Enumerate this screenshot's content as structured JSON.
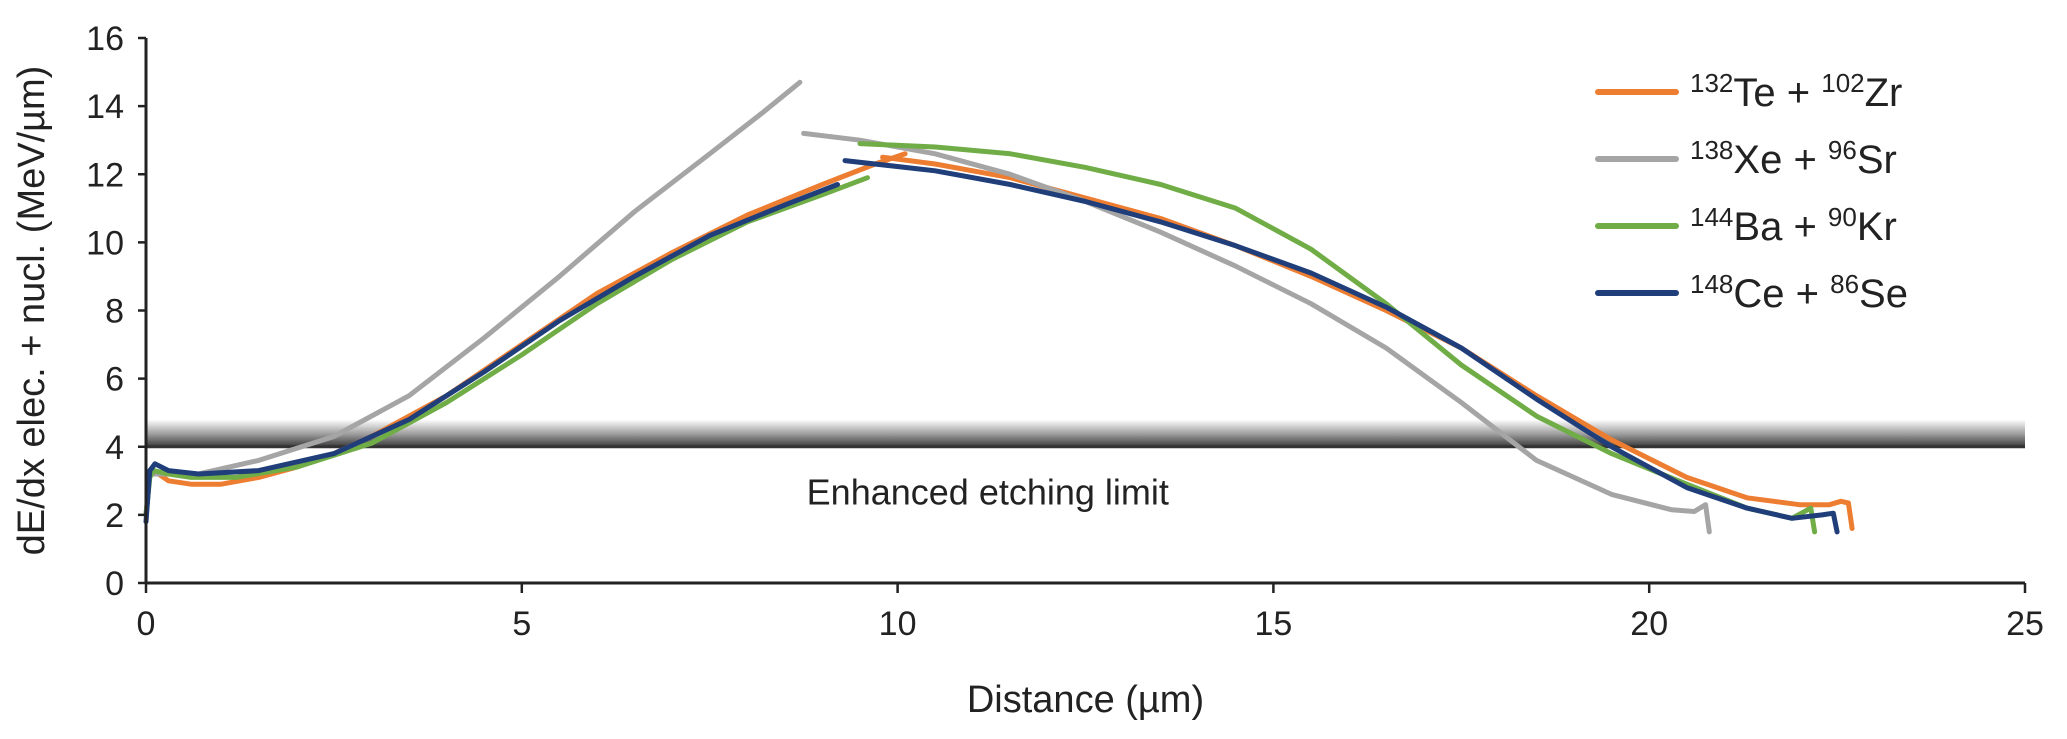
{
  "chart_data": {
    "type": "line",
    "xlabel": "Distance (µm)",
    "ylabel": "dE/dx elec. + nucl. (MeV/µm)",
    "xlim": [
      0,
      25
    ],
    "ylim": [
      0,
      16
    ],
    "xticks": [
      0,
      5,
      10,
      15,
      20,
      25
    ],
    "yticks": [
      0,
      2,
      4,
      6,
      8,
      10,
      12,
      14,
      16
    ],
    "grid": false,
    "legend_position": "top-right",
    "band": {
      "label": "Enhanced etching limit",
      "y_low": 4.0,
      "y_high": 4.8,
      "x_range": [
        0,
        25
      ]
    },
    "series": [
      {
        "name": "132Te + 102Zr",
        "legend": {
          "m1": "132",
          "e1": "Te",
          "sep": " + ",
          "m2": "102",
          "e2": "Zr"
        },
        "color": "#ED7D31",
        "segments": [
          [
            [
              0.0,
              2.0
            ],
            [
              0.05,
              3.2
            ],
            [
              0.1,
              3.3
            ],
            [
              0.3,
              3.0
            ],
            [
              0.6,
              2.9
            ],
            [
              1.0,
              2.9
            ],
            [
              1.5,
              3.1
            ],
            [
              2.0,
              3.4
            ],
            [
              2.5,
              3.8
            ],
            [
              3.0,
              4.3
            ],
            [
              4.0,
              5.5
            ],
            [
              5.0,
              7.0
            ],
            [
              6.0,
              8.5
            ],
            [
              7.0,
              9.7
            ],
            [
              8.0,
              10.8
            ],
            [
              9.0,
              11.7
            ],
            [
              9.7,
              12.3
            ],
            [
              10.1,
              12.6
            ]
          ],
          [
            [
              9.8,
              12.5
            ],
            [
              10.5,
              12.3
            ],
            [
              11.5,
              11.9
            ],
            [
              12.5,
              11.3
            ],
            [
              13.5,
              10.7
            ],
            [
              14.5,
              9.9
            ],
            [
              15.5,
              9.0
            ],
            [
              16.5,
              8.0
            ],
            [
              17.5,
              6.9
            ],
            [
              18.5,
              5.5
            ],
            [
              19.5,
              4.2
            ],
            [
              20.5,
              3.1
            ],
            [
              21.3,
              2.5
            ],
            [
              22.0,
              2.3
            ],
            [
              22.4,
              2.3
            ],
            [
              22.55,
              2.4
            ],
            [
              22.65,
              2.35
            ],
            [
              22.7,
              1.6
            ]
          ]
        ]
      },
      {
        "name": "138Xe + 96Sr",
        "legend": {
          "m1": "138",
          "e1": "Xe",
          "sep": " + ",
          "m2": "96",
          "e2": "Sr"
        },
        "color": "#A5A5A5",
        "segments": [
          [
            [
              0.0,
              2.0
            ],
            [
              0.05,
              3.2
            ],
            [
              0.3,
              3.2
            ],
            [
              0.7,
              3.2
            ],
            [
              1.5,
              3.6
            ],
            [
              2.5,
              4.3
            ],
            [
              3.5,
              5.5
            ],
            [
              4.5,
              7.2
            ],
            [
              5.5,
              9.0
            ],
            [
              6.5,
              10.9
            ],
            [
              7.5,
              12.6
            ],
            [
              8.2,
              13.8
            ],
            [
              8.7,
              14.7
            ]
          ],
          [
            [
              8.75,
              13.2
            ],
            [
              9.5,
              13.0
            ],
            [
              10.5,
              12.6
            ],
            [
              11.5,
              12.0
            ],
            [
              12.5,
              11.2
            ],
            [
              13.5,
              10.3
            ],
            [
              14.5,
              9.3
            ],
            [
              15.5,
              8.2
            ],
            [
              16.5,
              6.9
            ],
            [
              17.5,
              5.3
            ],
            [
              18.5,
              3.6
            ],
            [
              19.5,
              2.6
            ],
            [
              20.3,
              2.15
            ],
            [
              20.6,
              2.1
            ],
            [
              20.75,
              2.3
            ],
            [
              20.8,
              1.5
            ]
          ]
        ]
      },
      {
        "name": "144Ba + 90Kr",
        "legend": {
          "m1": "144",
          "e1": "Ba",
          "sep": " + ",
          "m2": "90",
          "e2": "Kr"
        },
        "color": "#70AD47",
        "segments": [
          [
            [
              0.0,
              2.0
            ],
            [
              0.05,
              3.1
            ],
            [
              0.1,
              3.3
            ],
            [
              0.3,
              3.2
            ],
            [
              0.6,
              3.1
            ],
            [
              1.2,
              3.1
            ],
            [
              2.0,
              3.4
            ],
            [
              3.0,
              4.1
            ],
            [
              4.0,
              5.3
            ],
            [
              5.0,
              6.7
            ],
            [
              6.0,
              8.2
            ],
            [
              7.0,
              9.5
            ],
            [
              8.0,
              10.6
            ],
            [
              9.0,
              11.4
            ],
            [
              9.6,
              11.9
            ]
          ],
          [
            [
              9.5,
              12.9
            ],
            [
              10.5,
              12.8
            ],
            [
              11.5,
              12.6
            ],
            [
              12.5,
              12.2
            ],
            [
              13.5,
              11.7
            ],
            [
              14.5,
              11.0
            ],
            [
              15.5,
              9.8
            ],
            [
              16.5,
              8.2
            ],
            [
              17.5,
              6.4
            ],
            [
              18.5,
              4.9
            ],
            [
              19.5,
              3.8
            ],
            [
              20.5,
              2.9
            ],
            [
              21.3,
              2.2
            ],
            [
              21.9,
              1.9
            ],
            [
              22.15,
              2.2
            ],
            [
              22.2,
              1.5
            ]
          ]
        ]
      },
      {
        "name": "148Ce + 86Se",
        "legend": {
          "m1": "148",
          "e1": "Ce",
          "sep": " + ",
          "m2": "86",
          "e2": "Se"
        },
        "color": "#1F3E7A",
        "segments": [
          [
            [
              0.0,
              1.8
            ],
            [
              0.05,
              3.3
            ],
            [
              0.12,
              3.5
            ],
            [
              0.3,
              3.3
            ],
            [
              0.7,
              3.2
            ],
            [
              1.5,
              3.3
            ],
            [
              2.5,
              3.8
            ],
            [
              3.5,
              4.8
            ],
            [
              4.5,
              6.2
            ],
            [
              5.5,
              7.7
            ],
            [
              6.5,
              9.0
            ],
            [
              7.5,
              10.2
            ],
            [
              8.5,
              11.1
            ],
            [
              9.2,
              11.7
            ]
          ],
          [
            [
              9.3,
              12.4
            ],
            [
              10.5,
              12.1
            ],
            [
              11.5,
              11.7
            ],
            [
              12.5,
              11.2
            ],
            [
              13.5,
              10.6
            ],
            [
              14.5,
              9.9
            ],
            [
              15.5,
              9.1
            ],
            [
              16.5,
              8.1
            ],
            [
              17.5,
              6.9
            ],
            [
              18.5,
              5.4
            ],
            [
              19.5,
              4.0
            ],
            [
              20.5,
              2.8
            ],
            [
              21.3,
              2.2
            ],
            [
              21.9,
              1.9
            ],
            [
              22.3,
              2.0
            ],
            [
              22.45,
              2.05
            ],
            [
              22.5,
              1.5
            ]
          ]
        ]
      }
    ]
  }
}
